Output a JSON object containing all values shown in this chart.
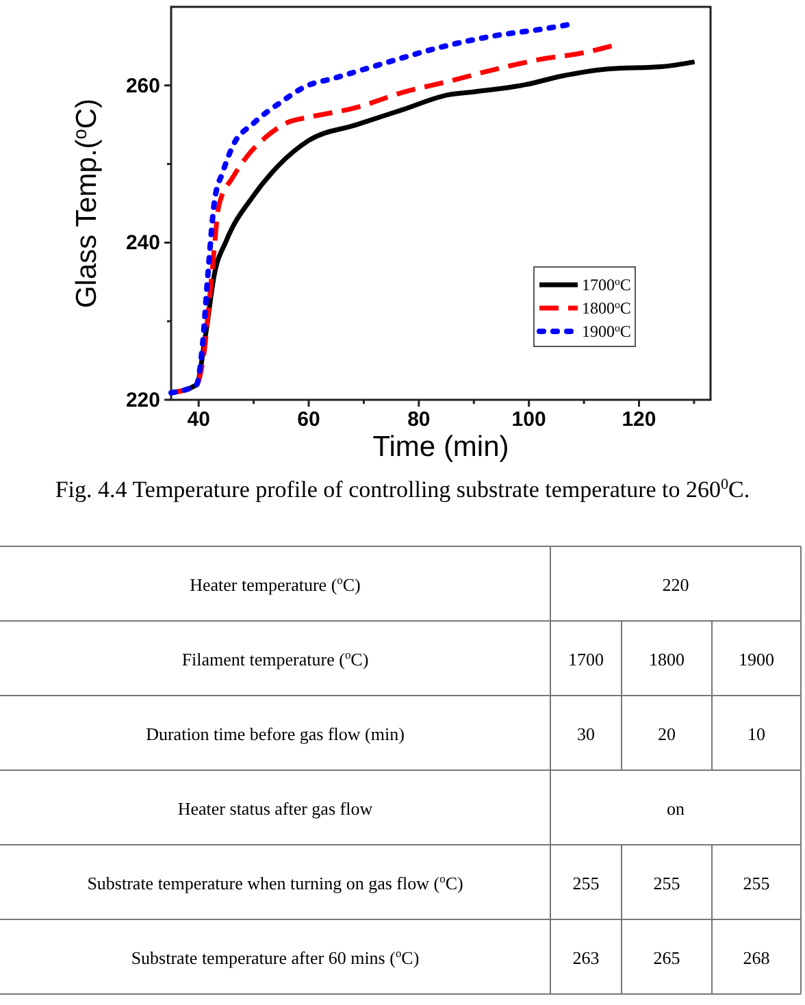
{
  "chart_data": [
    {
      "type": "line",
      "xlabel": "Time (min)",
      "ylabel": "Glass Temp.($^{o}$C)",
      "xlim": [
        35,
        133
      ],
      "ylim": [
        220,
        270
      ],
      "xticks": [
        40,
        {
          "value": 50,
          "label": null
        },
        60,
        {
          "value": 70,
          "label": null
        },
        80,
        {
          "value": 90,
          "label": null
        },
        100,
        {
          "value": 110,
          "label": null
        },
        120,
        {
          "value": 130,
          "label": null
        }
      ],
      "yticks": [
        220,
        {
          "value": 230,
          "label": null
        },
        240,
        {
          "value": 250,
          "label": null
        },
        260
      ],
      "legend": "bottom right",
      "grid": false,
      "marker": "none",
      "annotations": [
        "Fig. 4.4 Temperature profile of controlling substrate temperature to 260$^{0}$C."
      ],
      "series": [
        {
          "name": "1700$^{o}$C",
          "color": "#000000",
          "line_style": "solid",
          "x": [
            35,
            39.6,
            41.2,
            42.9,
            45,
            50,
            54.5,
            60,
            68.7,
            77,
            85.3,
            90.2,
            99.4,
            106,
            114.3,
            124.3,
            130.1
          ],
          "values": [
            220.9,
            221.9,
            228,
            236.1,
            240.2,
            246,
            249.8,
            253,
            255,
            256.9,
            258.8,
            259.2,
            260.1,
            261.2,
            262.1,
            262.4,
            263
          ]
        },
        {
          "name": "1800$^{o}$C",
          "color": "#ff0000",
          "line_style": "dashed",
          "x": [
            35,
            39.6,
            40.8,
            42.5,
            43.7,
            46.2,
            48.7,
            52,
            56.2,
            60.3,
            68.7,
            77,
            85.3,
            93.6,
            101.9,
            110.2,
            116
          ],
          "values": [
            220.9,
            221.9,
            225.1,
            236.7,
            244.8,
            248.3,
            250.9,
            253.3,
            255.3,
            256,
            257.2,
            259.1,
            260.5,
            262,
            263.3,
            264.2,
            265.2
          ]
        },
        {
          "name": "1900$^{o}$C",
          "color": "#0000ff",
          "line_style": "dotted",
          "x": [
            35,
            39.6,
            40.6,
            41.7,
            42.9,
            44.4,
            46.2,
            50,
            55,
            59.5,
            64.5,
            73.6,
            83.6,
            93.6,
            102.7,
            107.7
          ],
          "values": [
            220.9,
            221.9,
            226.2,
            236.1,
            245.4,
            249,
            252.3,
            255.2,
            257.9,
            259.9,
            260.9,
            262.8,
            264.8,
            266.3,
            267.2,
            267.8
          ]
        }
      ]
    },
    {
      "type": "other",
      "categories": [
        "Heater temperature ($^{o}$C)",
        "Filament temperature ($^{o}$C)",
        "Duration time before gas flow (min)",
        "Heater status after gas flow",
        "Substrate temperature when turning on gas flow ($^{o}$C)",
        "Substrate temperature after 60 mins ($^{o}$C)"
      ],
      "cell_labels": [
        [
          "220"
        ],
        [
          "1700",
          "1800",
          "1900"
        ],
        [
          "30",
          "20",
          "10"
        ],
        [
          "on"
        ],
        [
          "255",
          "255",
          "255"
        ],
        [
          "263",
          "265",
          "268"
        ]
      ]
    }
  ]
}
